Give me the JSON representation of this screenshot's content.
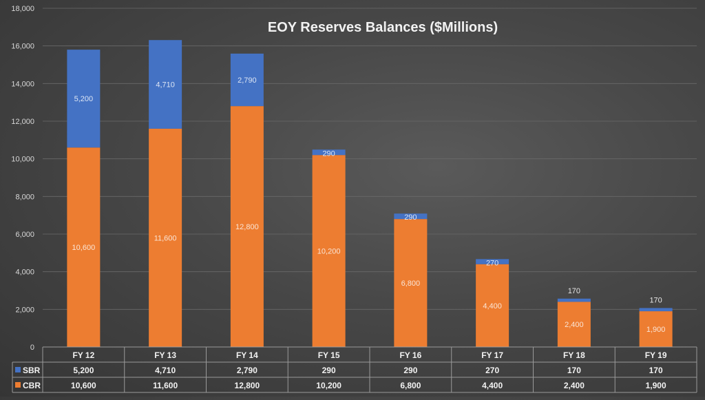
{
  "chart_data": {
    "type": "bar",
    "stacked": true,
    "title": "EOY Reserves Balances ($Millions)",
    "categories": [
      "FY 12",
      "FY 13",
      "FY 14",
      "FY 15",
      "FY 16",
      "FY 17",
      "FY 18",
      "FY 19"
    ],
    "series": [
      {
        "name": "CBR",
        "color": "#ED7D31",
        "values": [
          10600,
          11600,
          12800,
          10200,
          6800,
          4400,
          2400,
          1900
        ],
        "labels": [
          "10,600",
          "11,600",
          "12,800",
          "10,200",
          "6,800",
          "4,400",
          "2,400",
          "1,900"
        ]
      },
      {
        "name": "SBR",
        "color": "#4472C4",
        "values": [
          5200,
          4710,
          2790,
          290,
          290,
          270,
          170,
          170
        ],
        "labels": [
          "5,200",
          "4,710",
          "2,790",
          "290",
          "290",
          "270",
          "170",
          "170"
        ]
      }
    ],
    "ylim": [
      0,
      18000
    ],
    "yticks": [
      0,
      2000,
      4000,
      6000,
      8000,
      10000,
      12000,
      14000,
      16000,
      18000
    ],
    "ytick_labels": [
      "0",
      "2,000",
      "4,000",
      "6,000",
      "8,000",
      "10,000",
      "12,000",
      "14,000",
      "16,000",
      "18,000"
    ],
    "grid": true,
    "legend": "data-table",
    "data_table": {
      "row_order": [
        "SBR",
        "CBR"
      ]
    }
  }
}
